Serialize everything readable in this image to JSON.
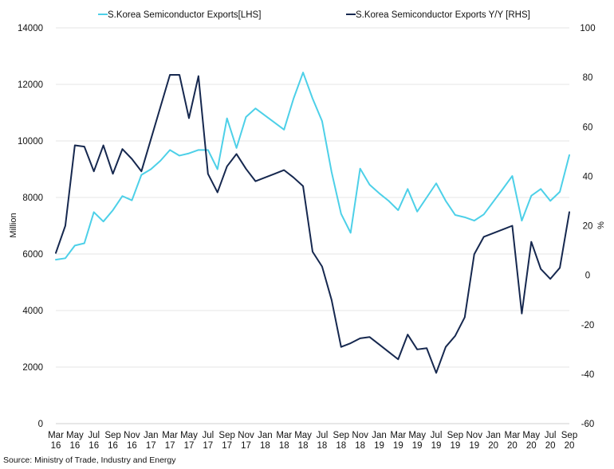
{
  "chart_data": {
    "type": "line",
    "title": "",
    "source": "Source: Ministry of Trade, Industry and Energy",
    "ylabel_left": "Million",
    "ylabel_right": "%",
    "ylim_left": [
      0,
      14000
    ],
    "ylim_right": [
      -60,
      100
    ],
    "yticks_left": [
      "0",
      "2000",
      "4000",
      "6000",
      "8000",
      "10000",
      "12000",
      "14000"
    ],
    "yticks_right": [
      "-60",
      "-40",
      "-20",
      "0",
      "20",
      "40",
      "60",
      "80",
      "100"
    ],
    "grid": "horizontal",
    "legend_placement": "top",
    "x_tick_labels": [
      [
        "Mar",
        "16"
      ],
      [
        "May",
        "16"
      ],
      [
        "Jul",
        "16"
      ],
      [
        "Sep",
        "16"
      ],
      [
        "Nov",
        "16"
      ],
      [
        "Jan",
        "17"
      ],
      [
        "Mar",
        "17"
      ],
      [
        "May",
        "17"
      ],
      [
        "Jul",
        "17"
      ],
      [
        "Sep",
        "17"
      ],
      [
        "Nov",
        "17"
      ],
      [
        "Jan",
        "18"
      ],
      [
        "Mar",
        "18"
      ],
      [
        "May",
        "18"
      ],
      [
        "Jul",
        "18"
      ],
      [
        "Sep",
        "18"
      ],
      [
        "Nov",
        "18"
      ],
      [
        "Jan",
        "19"
      ],
      [
        "Mar",
        "19"
      ],
      [
        "May",
        "19"
      ],
      [
        "Jul",
        "19"
      ],
      [
        "Sep",
        "19"
      ],
      [
        "Nov",
        "19"
      ],
      [
        "Jan",
        "20"
      ],
      [
        "Mar",
        "20"
      ],
      [
        "May",
        "20"
      ],
      [
        "Jul",
        "20"
      ],
      [
        "Sep",
        "20"
      ]
    ],
    "x": [
      "2016-03",
      "2016-04",
      "2016-05",
      "2016-06",
      "2016-07",
      "2016-08",
      "2016-09",
      "2016-10",
      "2016-11",
      "2016-12",
      "2017-01",
      "2017-02",
      "2017-03",
      "2017-04",
      "2017-05",
      "2017-06",
      "2017-07",
      "2017-08",
      "2017-09",
      "2017-10",
      "2017-11",
      "2017-12",
      "2018-01",
      "2018-02",
      "2018-03",
      "2018-04",
      "2018-05",
      "2018-06",
      "2018-07",
      "2018-08",
      "2018-09",
      "2018-10",
      "2018-11",
      "2018-12",
      "2019-01",
      "2019-02",
      "2019-03",
      "2019-04",
      "2019-05",
      "2019-06",
      "2019-07",
      "2019-08",
      "2019-09",
      "2019-10",
      "2019-11",
      "2019-12",
      "2020-01",
      "2020-02",
      "2020-03",
      "2020-04",
      "2020-05",
      "2020-06",
      "2020-07",
      "2020-08",
      "2020-09"
    ],
    "series": [
      {
        "name": "S.Korea Semiconductor Exports[LHS]",
        "axis": "left",
        "color": "#4dd0e8",
        "values": [
          5800,
          5850,
          6300,
          6380,
          7480,
          7150,
          7550,
          8050,
          7900,
          8800,
          9000,
          9300,
          9680,
          9480,
          9560,
          9680,
          9680,
          9000,
          10800,
          9750,
          10850,
          11150,
          10900,
          10650,
          10400,
          11500,
          12420,
          11500,
          10700,
          8900,
          7420,
          6750,
          9020,
          8450,
          8150,
          7880,
          7550,
          8300,
          7500,
          8000,
          8500,
          7880,
          7380,
          7300,
          7180,
          7400,
          7850,
          8300,
          8760,
          7180,
          8060,
          8300,
          7880,
          8200,
          9500
        ]
      },
      {
        "name": "S.Korea Semiconductor Exports Y/Y [RHS]",
        "axis": "right",
        "color": "#16284f",
        "values": [
          9,
          20,
          52.5,
          52,
          42,
          52.5,
          41,
          51,
          47,
          42,
          55,
          68,
          81,
          81,
          63.5,
          80.5,
          41,
          33.5,
          44,
          49,
          43,
          38,
          39.5,
          41,
          42.5,
          39.5,
          36,
          9.5,
          3.5,
          -10,
          -29,
          -27.5,
          -25.5,
          -25,
          -28,
          -31,
          -34,
          -24,
          -30,
          -29.5,
          -39.5,
          -29,
          -24.5,
          -17,
          8.5,
          15.5,
          17,
          18.5,
          20,
          -15.5,
          13.5,
          2.5,
          -1.5,
          3,
          25.5
        ]
      }
    ]
  }
}
